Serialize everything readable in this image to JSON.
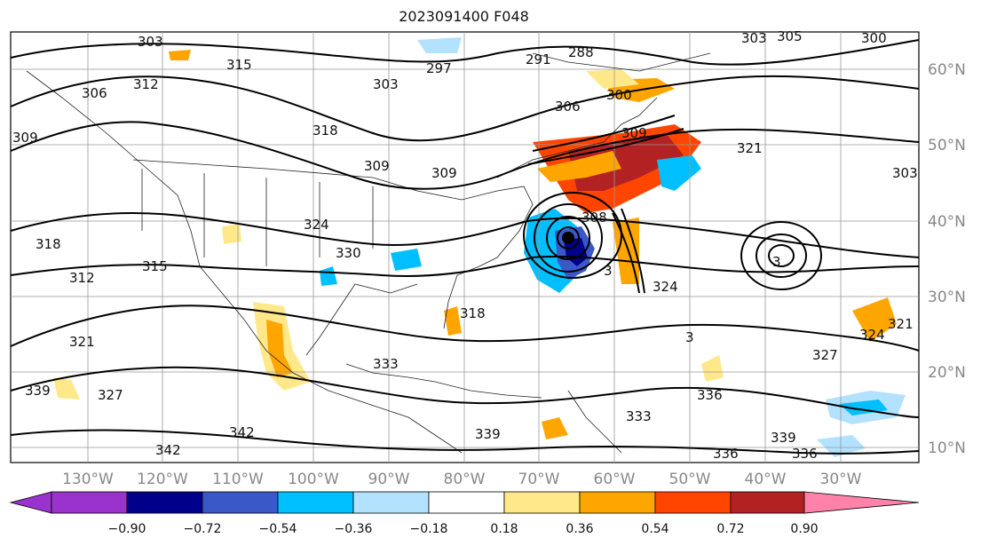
{
  "title": "2023091400 F048",
  "lat_labels": [
    "60°N",
    "50°N",
    "40°N",
    "30°N",
    "20°N",
    "10°N"
  ],
  "lon_labels": [
    "130°W",
    "120°W",
    "110°W",
    "100°W",
    "90°W",
    "80°W",
    "70°W",
    "60°W",
    "50°W",
    "40°W",
    "30°W"
  ],
  "contour_labels": [
    "303",
    "315",
    "312",
    "306",
    "309",
    "297",
    "291",
    "288",
    "303",
    "306",
    "300",
    "309",
    "303",
    "300",
    "305",
    "318",
    "309",
    "309",
    "324",
    "321",
    "303",
    "318",
    "315",
    "312",
    "330",
    "308",
    "324",
    "318",
    "333",
    "321",
    "327",
    "336",
    "339",
    "342",
    "342",
    "339",
    "333",
    "336",
    "339",
    "336",
    "327",
    "324",
    "321",
    "3",
    "3",
    "3"
  ],
  "colorbar": {
    "ticks": [
      "−0.90",
      "−0.72",
      "−0.54",
      "−0.36",
      "−0.18",
      "0.18",
      "0.36",
      "0.54",
      "0.72",
      "0.90"
    ],
    "colors": [
      "#9a32cd",
      "#00008b",
      "#3a58c8",
      "#00bfff",
      "#b2e2ff",
      "#ffffff",
      "#ffe889",
      "#ffa500",
      "#ff4500",
      "#b22222",
      "#ff82ab"
    ]
  }
}
